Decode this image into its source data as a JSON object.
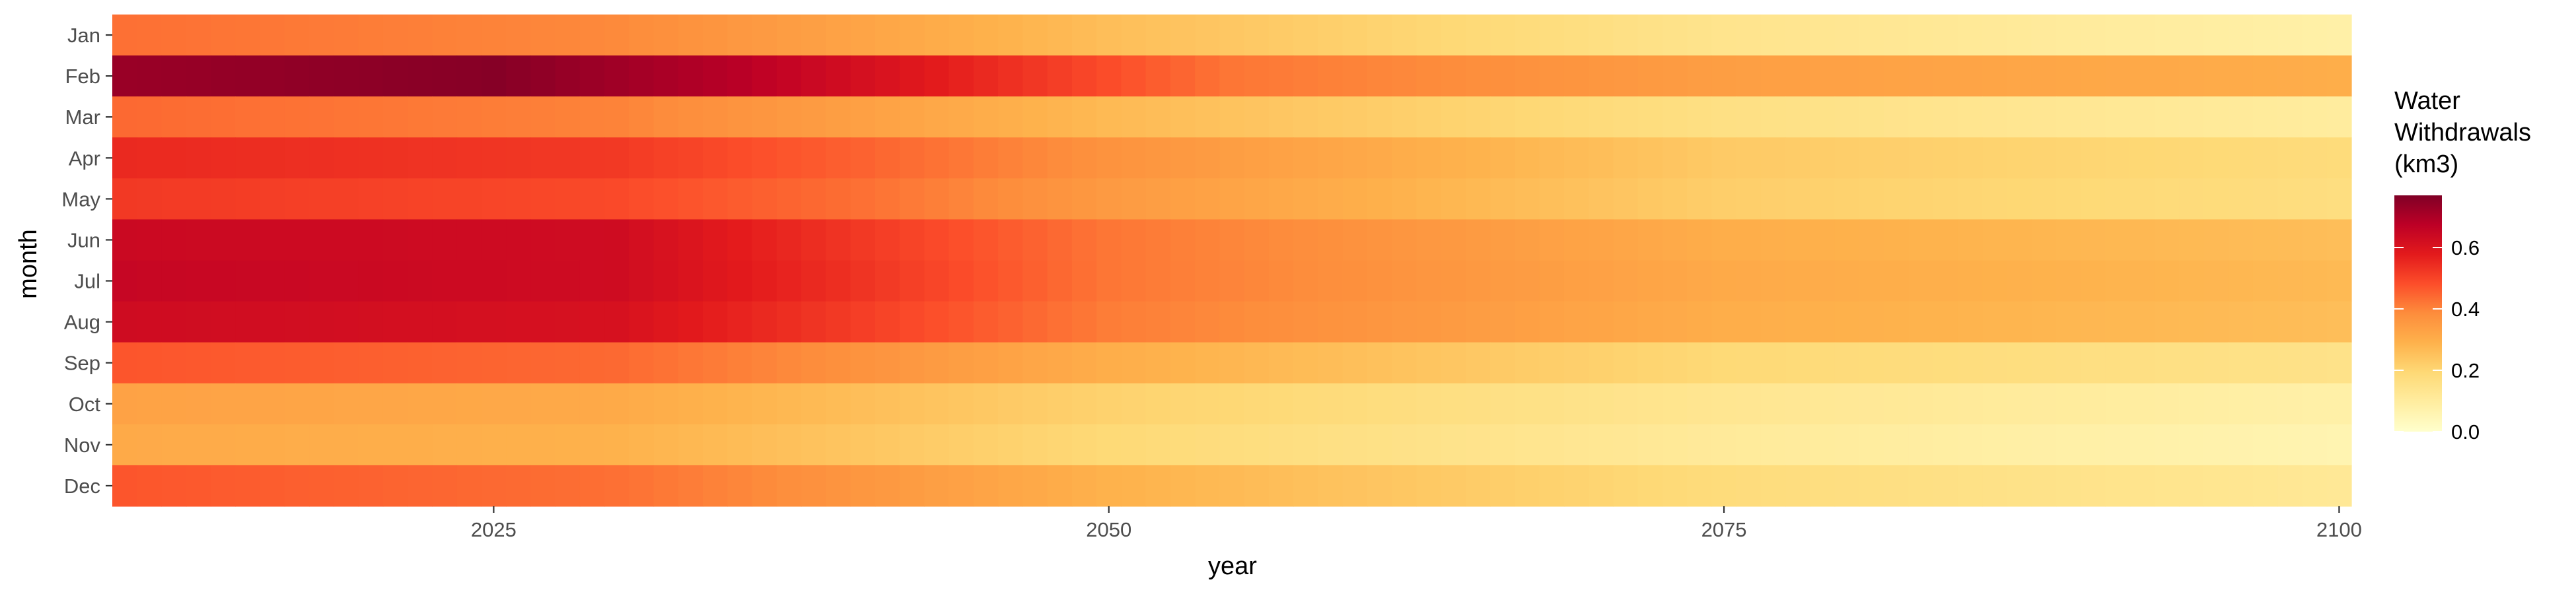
{
  "chart_data": {
    "type": "heatmap",
    "xlabel": "year",
    "ylabel": "month",
    "x_range": [
      2010,
      2100
    ],
    "x_ticks": [
      2025,
      2050,
      2075,
      2100
    ],
    "y_categories": [
      "Jan",
      "Feb",
      "Mar",
      "Apr",
      "May",
      "Jun",
      "Jul",
      "Aug",
      "Sep",
      "Oct",
      "Nov",
      "Dec"
    ],
    "legend": {
      "title_lines": [
        "Water",
        "Withdrawals",
        "(km3)"
      ],
      "ticks": [
        "0.0",
        "0.2",
        "0.4",
        "0.6"
      ],
      "tick_values": [
        0,
        0.2,
        0.4,
        0.6
      ],
      "range": [
        0,
        0.77
      ],
      "placement": "right"
    },
    "color_scale": {
      "name": "YlOrRd",
      "stops": [
        "#ffffcc",
        "#ffeda0",
        "#fed976",
        "#feb24c",
        "#fd8d3c",
        "#fc4e2a",
        "#e31a1c",
        "#bd0026",
        "#800026"
      ]
    },
    "profiles": [
      {
        "month": "Jan",
        "points": [
          [
            2010,
            0.43
          ],
          [
            2030,
            0.39
          ],
          [
            2050,
            0.26
          ],
          [
            2075,
            0.14
          ],
          [
            2100,
            0.08
          ]
        ]
      },
      {
        "month": "Feb",
        "points": [
          [
            2010,
            0.73
          ],
          [
            2025,
            0.76
          ],
          [
            2035,
            0.68
          ],
          [
            2045,
            0.55
          ],
          [
            2055,
            0.42
          ],
          [
            2075,
            0.34
          ],
          [
            2100,
            0.3
          ]
        ]
      },
      {
        "month": "Mar",
        "points": [
          [
            2010,
            0.44
          ],
          [
            2030,
            0.4
          ],
          [
            2050,
            0.27
          ],
          [
            2075,
            0.16
          ],
          [
            2100,
            0.1
          ]
        ]
      },
      {
        "month": "Apr",
        "points": [
          [
            2010,
            0.55
          ],
          [
            2030,
            0.52
          ],
          [
            2040,
            0.45
          ],
          [
            2050,
            0.37
          ],
          [
            2075,
            0.23
          ],
          [
            2100,
            0.18
          ]
        ]
      },
      {
        "month": "May",
        "points": [
          [
            2010,
            0.52
          ],
          [
            2030,
            0.49
          ],
          [
            2040,
            0.43
          ],
          [
            2050,
            0.35
          ],
          [
            2075,
            0.22
          ],
          [
            2100,
            0.17
          ]
        ]
      },
      {
        "month": "Jun",
        "points": [
          [
            2010,
            0.64
          ],
          [
            2030,
            0.63
          ],
          [
            2040,
            0.52
          ],
          [
            2050,
            0.42
          ],
          [
            2075,
            0.3
          ],
          [
            2100,
            0.26
          ]
        ]
      },
      {
        "month": "Jul",
        "points": [
          [
            2010,
            0.65
          ],
          [
            2030,
            0.63
          ],
          [
            2040,
            0.53
          ],
          [
            2050,
            0.42
          ],
          [
            2075,
            0.31
          ],
          [
            2100,
            0.27
          ]
        ]
      },
      {
        "month": "Aug",
        "points": [
          [
            2010,
            0.63
          ],
          [
            2030,
            0.61
          ],
          [
            2040,
            0.51
          ],
          [
            2050,
            0.41
          ],
          [
            2075,
            0.3
          ],
          [
            2100,
            0.26
          ]
        ]
      },
      {
        "month": "Sep",
        "points": [
          [
            2010,
            0.47
          ],
          [
            2030,
            0.44
          ],
          [
            2050,
            0.3
          ],
          [
            2075,
            0.19
          ],
          [
            2100,
            0.15
          ]
        ]
      },
      {
        "month": "Oct",
        "points": [
          [
            2010,
            0.33
          ],
          [
            2030,
            0.31
          ],
          [
            2050,
            0.21
          ],
          [
            2075,
            0.13
          ],
          [
            2100,
            0.08
          ]
        ]
      },
      {
        "month": "Nov",
        "points": [
          [
            2010,
            0.31
          ],
          [
            2030,
            0.29
          ],
          [
            2050,
            0.19
          ],
          [
            2075,
            0.11
          ],
          [
            2100,
            0.06
          ]
        ]
      },
      {
        "month": "Dec",
        "points": [
          [
            2010,
            0.47
          ],
          [
            2030,
            0.43
          ],
          [
            2050,
            0.29
          ],
          [
            2075,
            0.18
          ],
          [
            2100,
            0.12
          ]
        ]
      }
    ]
  }
}
